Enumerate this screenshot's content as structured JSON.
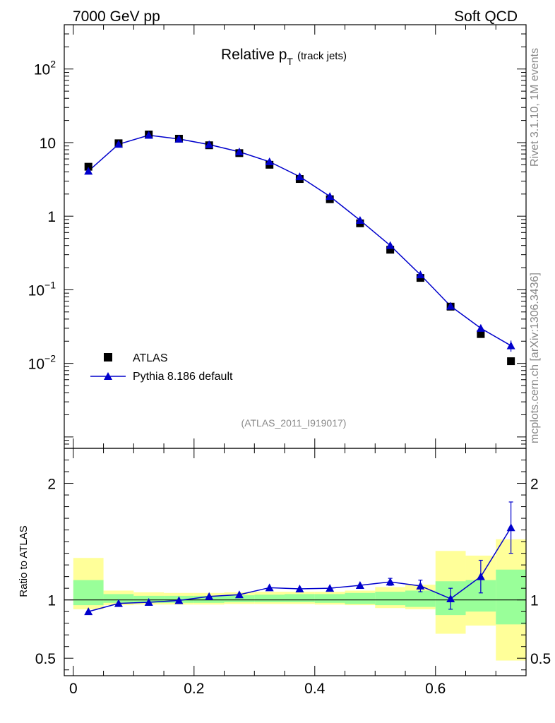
{
  "header": {
    "left": "7000 GeV pp",
    "right": "Soft QCD"
  },
  "side_labels": {
    "rivet": "Rivet 3.1.10,  1M events",
    "mcplots": "mcplots.cern.ch [arXiv:1306.3436]"
  },
  "chart_data": [
    {
      "type": "scatter",
      "panel": "main",
      "title_main": "Relative p",
      "title_sub": "T",
      "title_extra": "(track jets)",
      "analysis_label": "(ATLAS_2011_I919017)",
      "yscale": "log",
      "xlim": [
        -0.015,
        0.75
      ],
      "ylim": [
        0.0007,
        400
      ],
      "y_ticks": [
        {
          "value": 100,
          "base": "10",
          "exp": "2"
        },
        {
          "value": 10,
          "base": "10",
          "exp": ""
        },
        {
          "value": 1,
          "base": "1",
          "exp": ""
        },
        {
          "value": 0.1,
          "base": "10",
          "exp": "−1"
        },
        {
          "value": 0.01,
          "base": "10",
          "exp": "−2"
        }
      ],
      "legend": {
        "placement": "bottom-left",
        "entries": [
          "ATLAS",
          "Pythia 8.186 default"
        ]
      },
      "series": [
        {
          "name": "ATLAS",
          "marker": "square",
          "color": "#000000",
          "x": [
            0.025,
            0.075,
            0.125,
            0.175,
            0.225,
            0.275,
            0.325,
            0.375,
            0.425,
            0.475,
            0.525,
            0.575,
            0.625,
            0.675,
            0.725
          ],
          "y": [
            4.7,
            9.8,
            12.9,
            11.3,
            9.2,
            7.2,
            5.0,
            3.2,
            1.7,
            0.8,
            0.35,
            0.145,
            0.059,
            0.025,
            0.0107
          ]
        },
        {
          "name": "Pythia 8.186 default",
          "marker": "triangle",
          "color": "#0000cc",
          "x": [
            0.025,
            0.075,
            0.125,
            0.175,
            0.225,
            0.275,
            0.325,
            0.375,
            0.425,
            0.475,
            0.525,
            0.575,
            0.625,
            0.675,
            0.725
          ],
          "y": [
            4.1,
            9.5,
            12.6,
            11.2,
            9.4,
            7.5,
            5.5,
            3.45,
            1.86,
            0.88,
            0.4,
            0.16,
            0.06,
            0.03,
            0.0174
          ]
        }
      ]
    },
    {
      "type": "line",
      "panel": "ratio",
      "ylabel": "Ratio to ATLAS",
      "xlim": [
        -0.015,
        0.75
      ],
      "ylim": [
        0.35,
        2.3
      ],
      "x_ticks": [
        "0",
        "0.2",
        "0.4",
        "0.6"
      ],
      "x_tick_values": [
        0,
        0.2,
        0.4,
        0.6
      ],
      "y_ticks": [
        "0.5",
        "1",
        "2"
      ],
      "y_tick_values": [
        0.5,
        1,
        2
      ],
      "bands": {
        "x_edges": [
          0,
          0.05,
          0.1,
          0.15,
          0.2,
          0.25,
          0.3,
          0.35,
          0.4,
          0.45,
          0.5,
          0.55,
          0.6,
          0.65,
          0.7,
          0.75
        ],
        "yellow_low": [
          0.92,
          0.955,
          0.96,
          0.96,
          0.96,
          0.965,
          0.965,
          0.965,
          0.96,
          0.955,
          0.93,
          0.92,
          0.71,
          0.78,
          0.48
        ],
        "yellow_high": [
          1.36,
          1.08,
          1.065,
          1.06,
          1.06,
          1.065,
          1.07,
          1.07,
          1.07,
          1.08,
          1.11,
          1.13,
          1.42,
          1.38,
          1.52
        ],
        "green_low": [
          0.955,
          0.975,
          0.975,
          0.975,
          0.975,
          0.98,
          0.98,
          0.98,
          0.975,
          0.965,
          0.955,
          0.94,
          0.87,
          0.9,
          0.79
        ],
        "green_high": [
          1.17,
          1.05,
          1.035,
          1.035,
          1.035,
          1.04,
          1.045,
          1.05,
          1.05,
          1.06,
          1.07,
          1.08,
          1.16,
          1.17,
          1.26
        ]
      },
      "series": [
        {
          "name": "Pythia 8.186 default / ATLAS",
          "color": "#0000cc",
          "x": [
            0.025,
            0.075,
            0.125,
            0.175,
            0.225,
            0.275,
            0.325,
            0.375,
            0.425,
            0.475,
            0.525,
            0.575,
            0.625,
            0.675,
            0.725
          ],
          "y": [
            0.9,
            0.97,
            0.98,
            0.995,
            1.03,
            1.045,
            1.105,
            1.095,
            1.1,
            1.125,
            1.155,
            1.12,
            1.01,
            1.2,
            1.62
          ],
          "err": [
            0,
            0,
            0,
            0,
            0,
            0,
            0,
            0,
            0,
            0,
            0.03,
            0.05,
            0.09,
            0.14,
            0.22
          ]
        }
      ]
    }
  ]
}
